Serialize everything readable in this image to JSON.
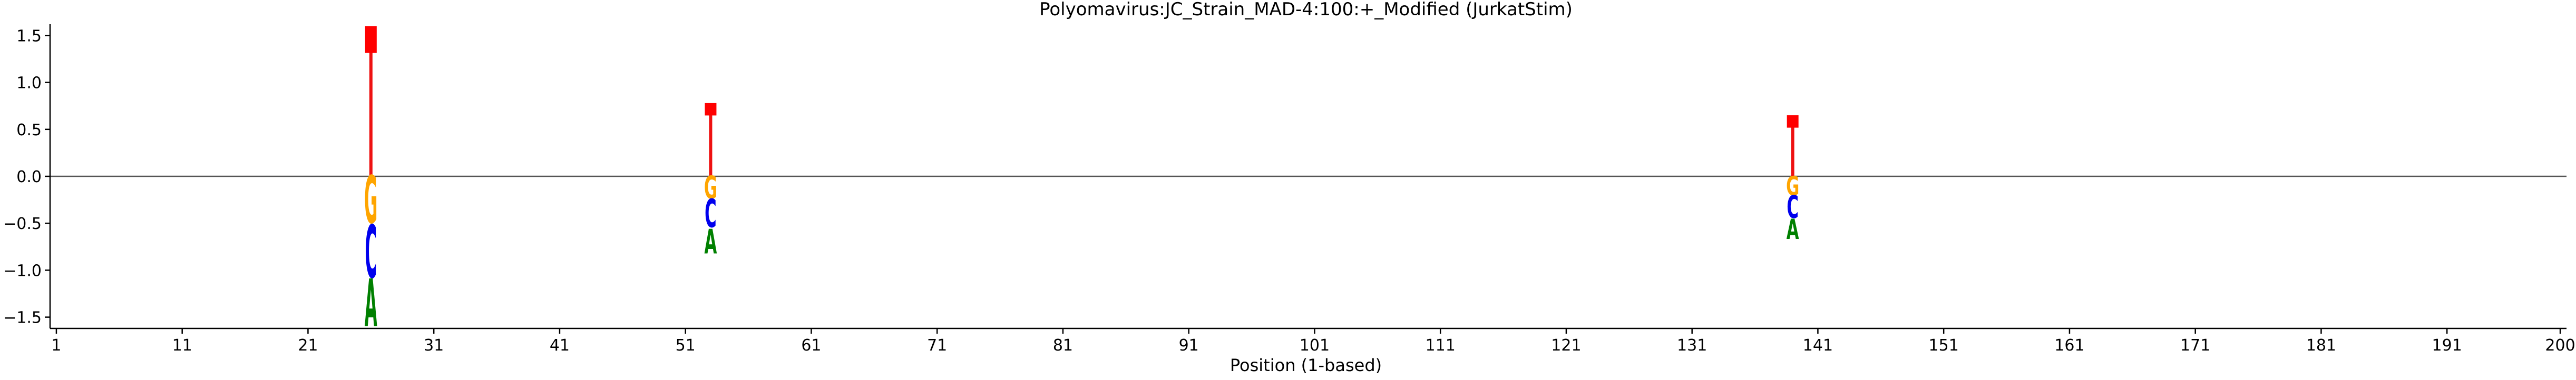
{
  "chart_data": {
    "type": "sequence-logo-lollipop",
    "title": "Polyomavirus:JC_Strain_MAD-4:100:+_Modified  (JurkatStim)",
    "xlabel": "Position (1-based)",
    "ylabel": "",
    "xlim": [
      0.5,
      200.5
    ],
    "ylim": [
      -1.62,
      1.62
    ],
    "xticks": [
      1,
      11,
      21,
      31,
      41,
      51,
      61,
      71,
      81,
      91,
      101,
      111,
      121,
      131,
      141,
      151,
      161,
      171,
      181,
      191,
      200
    ],
    "yticks": [
      -1.5,
      -1.0,
      -0.5,
      0.0,
      0.5,
      1.0,
      1.5
    ],
    "ytick_labels": [
      "−1.5",
      "−1.0",
      "−0.5",
      "0.0",
      "0.5",
      "1.0",
      "1.5"
    ],
    "zero_line": true,
    "grid": false,
    "colors": {
      "stem": "#ee1111",
      "A": "#008000",
      "C": "#0000ee",
      "G": "#ffa500",
      "T": "#ff0000",
      "axis": "#000000",
      "zero_line": "#555555"
    },
    "points": [
      {
        "position": 26,
        "top_letter": "T",
        "top_value": 1.6,
        "stack": [
          {
            "letter": "G",
            "from": 0.0,
            "to": -0.52
          },
          {
            "letter": "C",
            "from": -0.52,
            "to": -1.1
          },
          {
            "letter": "A",
            "from": -1.1,
            "to": -1.62
          }
        ]
      },
      {
        "position": 53,
        "top_letter": "T",
        "top_value": 0.78,
        "stack": [
          {
            "letter": "G",
            "from": 0.0,
            "to": -0.25
          },
          {
            "letter": "C",
            "from": -0.25,
            "to": -0.56
          },
          {
            "letter": "A",
            "from": -0.56,
            "to": -0.83
          }
        ]
      },
      {
        "position": 139,
        "top_letter": "T",
        "top_value": 0.65,
        "stack": [
          {
            "letter": "G",
            "from": 0.0,
            "to": -0.21
          },
          {
            "letter": "C",
            "from": -0.21,
            "to": -0.46
          },
          {
            "letter": "A",
            "from": -0.46,
            "to": -0.68
          }
        ]
      }
    ]
  }
}
